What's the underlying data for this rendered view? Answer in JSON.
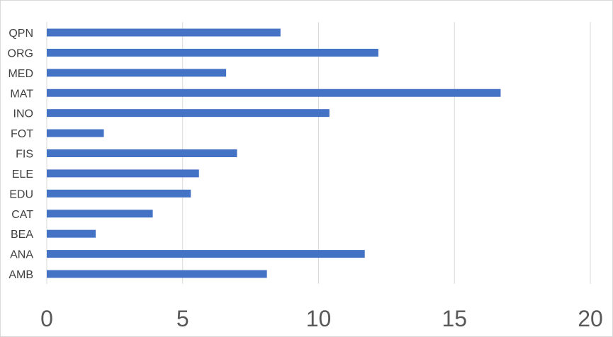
{
  "chart_data": {
    "type": "bar",
    "orientation": "horizontal",
    "categories": [
      "QPN",
      "ORG",
      "MED",
      "MAT",
      "INO",
      "FOT",
      "FIS",
      "ELE",
      "EDU",
      "CAT",
      "BEA",
      "ANA",
      "AMB"
    ],
    "values": [
      8.6,
      12.2,
      6.6,
      16.7,
      10.4,
      2.1,
      7.0,
      5.6,
      5.3,
      3.9,
      1.8,
      11.7,
      8.1
    ],
    "xlim": [
      0,
      20
    ],
    "x_ticks": [
      "0",
      "5",
      "10",
      "15",
      "20"
    ],
    "grid": true,
    "legend": "none",
    "bar_color": "#4472c4",
    "grid_color": "#d9d9d9"
  }
}
